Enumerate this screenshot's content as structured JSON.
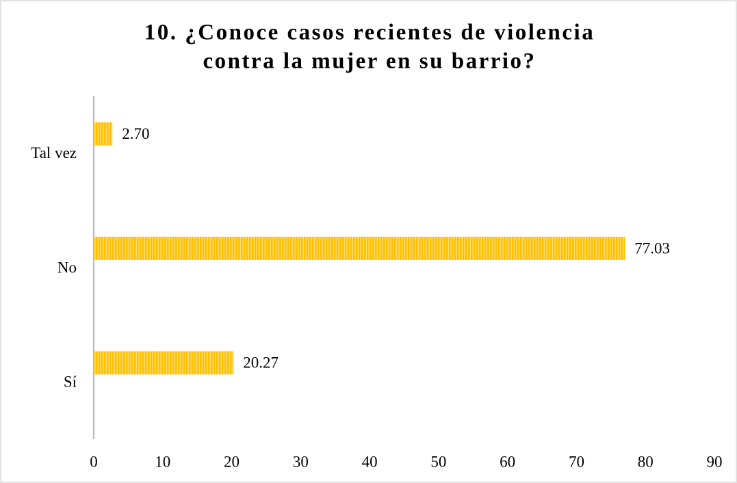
{
  "chart_data": {
    "type": "bar",
    "orientation": "horizontal",
    "title": [
      "10. ¿Conoce casos recientes de violencia",
      "contra la mujer en su barrio?"
    ],
    "categories": [
      "Tal vez",
      "No",
      "Sí"
    ],
    "values": [
      2.7,
      77.03,
      20.27
    ],
    "value_labels": [
      "2.70",
      "77.03",
      "20.27"
    ],
    "color": "#FFC000",
    "xlim": [
      0,
      90
    ],
    "xticks": [
      0,
      10,
      20,
      30,
      40,
      50,
      60,
      70,
      80,
      90
    ],
    "grid": false
  }
}
